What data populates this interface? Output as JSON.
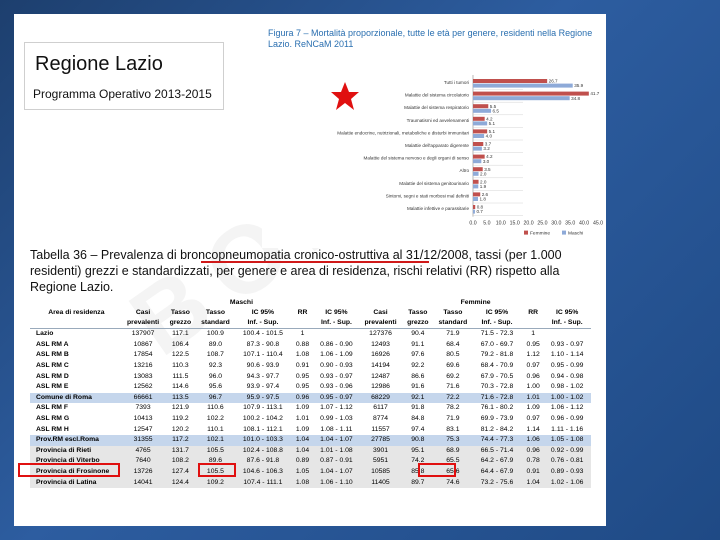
{
  "logo": {
    "title": "Regione Lazio",
    "subtitle": "Programma Operativo 2013-2015"
  },
  "watermark": "BOZZA",
  "figure": {
    "title": "Figura 7 – Mortalità proporzionale, tutte le età per genere, residenti nella Regione Lazio. ReNCaM 2011"
  },
  "chart_data": {
    "type": "bar",
    "orientation": "horizontal",
    "title": "Figura 7 – Mortalità proporzionale, tutte le età per genere, residenti nella Regione Lazio. ReNCaM 2011",
    "categories": [
      "Tutti i tumori",
      "Malattie del sistema circolatorio",
      "Malattie del sistema respiratorio",
      "Traumatismi ed avvelenamenti",
      "Malattie endocrine, nutrizionali, metaboliche e disturbi immunitari",
      "Malattie dell'apparato digerente",
      "Malattie del sistema nervoso e degli organi di senso",
      "Altro",
      "Malattie del sistema genitourinario",
      "Sintomi, segni e stati morbosi mal definiti",
      "Malattie infettive e parassitarie"
    ],
    "series": [
      {
        "name": "Femmine",
        "color": "#c0504d",
        "values": [
          26.7,
          41.7,
          5.5,
          4.2,
          5.1,
          3.7,
          4.2,
          3.5,
          2.0,
          2.6,
          0.8
        ]
      },
      {
        "name": "Maschi",
        "color": "#8eaad8",
        "values": [
          35.9,
          34.8,
          6.5,
          5.1,
          4.0,
          3.2,
          3.0,
          2.0,
          1.9,
          1.8,
          0.7
        ]
      }
    ],
    "value_labels": [
      [
        "26.7",
        "35.9"
      ],
      [
        "41.7",
        "34.8"
      ],
      [
        "5.5",
        "6.5"
      ],
      [
        "4.2",
        "5.1"
      ],
      [
        "5.1",
        "4.0"
      ],
      [
        "3.7",
        "3.2"
      ],
      [
        "4.2",
        "3.0"
      ],
      [
        "3.5",
        "2.0"
      ],
      [
        "2.0",
        "1.9"
      ],
      [
        "2.6",
        "1.8"
      ],
      [
        "0.8",
        "0.7"
      ]
    ],
    "xlim": [
      0,
      45
    ],
    "xticks": [
      "0.0",
      "5.0",
      "10.0",
      "15.0",
      "20.0",
      "25.0",
      "30.0",
      "35.0",
      "40.0",
      "45.0"
    ],
    "legend": {
      "placement": "bottom",
      "labels": [
        "Femmine",
        "Maschi"
      ]
    },
    "grid": false
  },
  "table": {
    "title": "Tabella 36 – Prevalenza di broncopneumopatia cronico-ostruttiva al 31/12/2008, tassi (per 1.000 residenti) grezzi e standardizzati, per genere e area di residenza, rischi relativi (RR) rispetto alla Regione Lazio.",
    "group_headers": [
      "Maschi",
      "Femmine"
    ],
    "header1": [
      "Area di residenza",
      "Casi",
      "Tasso",
      "Tasso",
      "IC 95%",
      "RR",
      "IC 95%",
      "Casi",
      "Tasso",
      "Tasso",
      "IC 95%",
      "RR",
      "IC 95%"
    ],
    "header2": [
      "",
      "prevalenti",
      "grezzo",
      "standard",
      "Inf. - Sup.",
      "",
      "Inf. - Sup.",
      "prevalenti",
      "grezzo",
      "standard",
      "Inf. - Sup.",
      "",
      "Inf. - Sup."
    ],
    "rows": [
      {
        "name": "Lazio",
        "style": "",
        "cells": [
          "137907",
          "117.1",
          "100.9",
          "100.4 - 101.5",
          "1",
          "",
          "127376",
          "90.4",
          "71.9",
          "71.5 - 72.3",
          "1",
          ""
        ]
      },
      {
        "name": "ASL RM A",
        "style": "",
        "cells": [
          "10867",
          "106.4",
          "89.0",
          "87.3 - 90.8",
          "0.88",
          "0.86 - 0.90",
          "12493",
          "91.1",
          "68.4",
          "67.0 - 69.7",
          "0.95",
          "0.93 - 0.97"
        ]
      },
      {
        "name": "ASL RM B",
        "style": "",
        "cells": [
          "17854",
          "122.5",
          "108.7",
          "107.1 - 110.4",
          "1.08",
          "1.06 - 1.09",
          "16926",
          "97.6",
          "80.5",
          "79.2 - 81.8",
          "1.12",
          "1.10 - 1.14"
        ]
      },
      {
        "name": "ASL RM C",
        "style": "",
        "cells": [
          "13216",
          "110.3",
          "92.3",
          "90.6 - 93.9",
          "0.91",
          "0.90 - 0.93",
          "14194",
          "92.2",
          "69.6",
          "68.4 - 70.9",
          "0.97",
          "0.95 - 0.99"
        ]
      },
      {
        "name": "ASL RM D",
        "style": "",
        "cells": [
          "13083",
          "111.5",
          "96.0",
          "94.3 - 97.7",
          "0.95",
          "0.93 - 0.97",
          "12487",
          "86.6",
          "69.2",
          "67.9 - 70.5",
          "0.96",
          "0.94 - 0.98"
        ]
      },
      {
        "name": "ASL RM E",
        "style": "",
        "cells": [
          "12562",
          "114.6",
          "95.6",
          "93.9 - 97.4",
          "0.95",
          "0.93 - 0.96",
          "12986",
          "91.6",
          "71.6",
          "70.3 - 72.8",
          "1.00",
          "0.98 - 1.02"
        ]
      },
      {
        "name": "Comune di Roma",
        "style": "shade",
        "cells": [
          "66661",
          "113.5",
          "96.7",
          "95.9 - 97.5",
          "0.96",
          "0.95 - 0.97",
          "68229",
          "92.1",
          "72.2",
          "71.6 - 72.8",
          "1.01",
          "1.00 - 1.02"
        ]
      },
      {
        "name": "ASL RM F",
        "style": "",
        "cells": [
          "7393",
          "121.9",
          "110.6",
          "107.9 - 113.1",
          "1.09",
          "1.07 - 1.12",
          "6117",
          "91.8",
          "78.2",
          "76.1 - 80.2",
          "1.09",
          "1.06 - 1.12"
        ]
      },
      {
        "name": "ASL RM G",
        "style": "",
        "cells": [
          "10413",
          "119.2",
          "102.2",
          "100.2 - 104.2",
          "1.01",
          "0.99 - 1.03",
          "8774",
          "84.8",
          "71.9",
          "69.9 - 73.9",
          "0.97",
          "0.96 - 0.99"
        ]
      },
      {
        "name": "ASL RM H",
        "style": "",
        "cells": [
          "12547",
          "120.2",
          "110.1",
          "108.1 - 112.1",
          "1.09",
          "1.08 - 1.11",
          "11557",
          "97.4",
          "83.1",
          "81.2 - 84.2",
          "1.14",
          "1.11 - 1.16"
        ]
      },
      {
        "name": "Prov.RM escl.Roma",
        "style": "shade",
        "cells": [
          "31355",
          "117.2",
          "102.1",
          "101.0 - 103.3",
          "1.04",
          "1.04 - 1.07",
          "27785",
          "90.8",
          "75.3",
          "74.4 - 77.3",
          "1.06",
          "1.05 - 1.08"
        ]
      },
      {
        "name": "Provincia di Rieti",
        "style": "gray",
        "cells": [
          "4765",
          "131.7",
          "105.5",
          "102.4 - 108.8",
          "1.04",
          "1.01 - 1.08",
          "3901",
          "95.1",
          "68.9",
          "66.5 - 71.4",
          "0.96",
          "0.92 - 0.99"
        ]
      },
      {
        "name": "Provincia di Viterbo",
        "style": "gray",
        "cells": [
          "7640",
          "108.2",
          "89.6",
          "87.6 - 91.8",
          "0.89",
          "0.87 - 0.91",
          "5951",
          "74.2",
          "65.5",
          "64.2 - 67.9",
          "0.78",
          "0.76 - 0.81"
        ]
      },
      {
        "name": "Provincia di Frosinone",
        "style": "gray",
        "cells": [
          "13726",
          "127.4",
          "105.5",
          "104.6 - 106.3",
          "1.05",
          "1.04 - 1.07",
          "10585",
          "85.8",
          "65.6",
          "64.4 - 67.9",
          "0.91",
          "0.89 - 0.93"
        ]
      },
      {
        "name": "Provincia di Latina",
        "style": "gray",
        "cells": [
          "14041",
          "124.4",
          "109.2",
          "107.4 - 111.1",
          "1.08",
          "1.06 - 1.10",
          "11405",
          "89.7",
          "74.6",
          "73.2 - 75.6",
          "1.04",
          "1.02 - 1.06"
        ]
      }
    ]
  }
}
